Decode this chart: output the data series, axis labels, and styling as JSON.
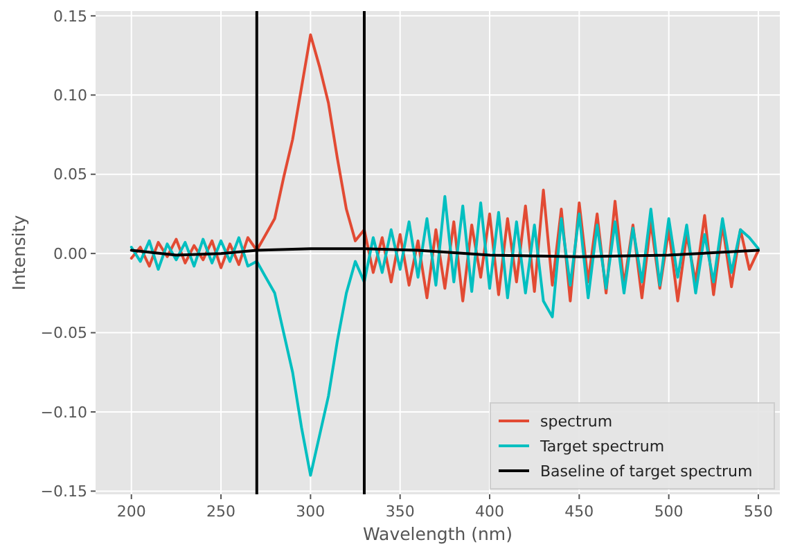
{
  "chart_data": {
    "type": "line",
    "xlabel": "Wavelength (nm)",
    "ylabel": "Intensity",
    "xlim": [
      180,
      562
    ],
    "ylim": [
      -0.152,
      0.153
    ],
    "xticks": [
      200,
      250,
      300,
      350,
      400,
      450,
      500,
      550
    ],
    "yticks": [
      {
        "value": -0.15,
        "label": "−0.15"
      },
      {
        "value": -0.1,
        "label": "−0.10"
      },
      {
        "value": -0.05,
        "label": "−0.05"
      },
      {
        "value": 0,
        "label": "0.00"
      },
      {
        "value": 0.05,
        "label": "0.05"
      },
      {
        "value": 0.1,
        "label": "0.10"
      },
      {
        "value": 0.15,
        "label": "0.15"
      }
    ],
    "grid": true,
    "legend": "bottom right",
    "line_style": "solid",
    "marker": "none",
    "x": [
      200,
      205,
      210,
      215,
      220,
      225,
      230,
      235,
      240,
      245,
      250,
      255,
      260,
      265,
      270,
      275,
      280,
      285,
      290,
      295,
      300,
      305,
      310,
      315,
      320,
      325,
      330,
      335,
      340,
      345,
      350,
      355,
      360,
      365,
      370,
      375,
      380,
      385,
      390,
      395,
      400,
      405,
      410,
      415,
      420,
      425,
      430,
      435,
      440,
      445,
      450,
      455,
      460,
      465,
      470,
      475,
      480,
      485,
      490,
      495,
      500,
      505,
      510,
      515,
      520,
      525,
      530,
      535,
      540,
      545,
      550
    ],
    "series": [
      {
        "name": "spectrum",
        "color": "#e24a33",
        "values": [
          -0.003,
          0.004,
          -0.008,
          0.007,
          -0.002,
          0.009,
          -0.006,
          0.005,
          -0.004,
          0.008,
          -0.009,
          0.006,
          -0.007,
          0.01,
          0.002,
          0.012,
          0.022,
          0.048,
          0.072,
          0.105,
          0.138,
          0.118,
          0.095,
          0.06,
          0.028,
          0.008,
          0.015,
          -0.012,
          0.01,
          -0.018,
          0.012,
          -0.02,
          0.008,
          -0.028,
          0.015,
          -0.022,
          0.02,
          -0.03,
          0.018,
          -0.015,
          0.025,
          -0.026,
          0.022,
          -0.018,
          0.03,
          -0.024,
          0.04,
          -0.02,
          0.028,
          -0.03,
          0.032,
          -0.018,
          0.025,
          -0.025,
          0.033,
          -0.02,
          0.018,
          -0.028,
          0.02,
          -0.022,
          0.015,
          -0.03,
          0.012,
          -0.018,
          0.024,
          -0.026,
          0.018,
          -0.021,
          0.015,
          -0.01,
          0.002
        ]
      },
      {
        "name": "Target spectrum",
        "color": "#00bfc0",
        "values": [
          0.004,
          -0.005,
          0.008,
          -0.01,
          0.006,
          -0.004,
          0.007,
          -0.008,
          0.009,
          -0.006,
          0.008,
          -0.005,
          0.01,
          -0.008,
          -0.005,
          -0.015,
          -0.025,
          -0.05,
          -0.075,
          -0.11,
          -0.14,
          -0.115,
          -0.09,
          -0.055,
          -0.025,
          -0.005,
          -0.018,
          0.01,
          -0.012,
          0.015,
          -0.01,
          0.02,
          -0.015,
          0.022,
          -0.02,
          0.036,
          -0.018,
          0.03,
          -0.024,
          0.032,
          -0.022,
          0.026,
          -0.028,
          0.02,
          -0.025,
          0.018,
          -0.03,
          -0.04,
          0.022,
          -0.02,
          0.025,
          -0.028,
          0.018,
          -0.022,
          0.02,
          -0.025,
          0.016,
          -0.018,
          0.028,
          -0.02,
          0.022,
          -0.015,
          0.018,
          -0.025,
          0.012,
          -0.018,
          0.022,
          -0.012,
          0.015,
          0.01,
          0.003
        ]
      },
      {
        "name": "Baseline of target spectrum",
        "color": "#000000",
        "x": [
          200,
          225,
          250,
          270,
          300,
          330,
          360,
          400,
          450,
          500,
          550
        ],
        "values": [
          0.002,
          -0.001,
          0,
          0.002,
          0.003,
          0.003,
          0.002,
          -0.001,
          -0.002,
          -0.001,
          0.002
        ]
      }
    ],
    "ref_lines": [
      {
        "axis": "x",
        "value": 270,
        "color": "#000000"
      },
      {
        "axis": "x",
        "value": 330,
        "color": "#000000"
      }
    ]
  }
}
